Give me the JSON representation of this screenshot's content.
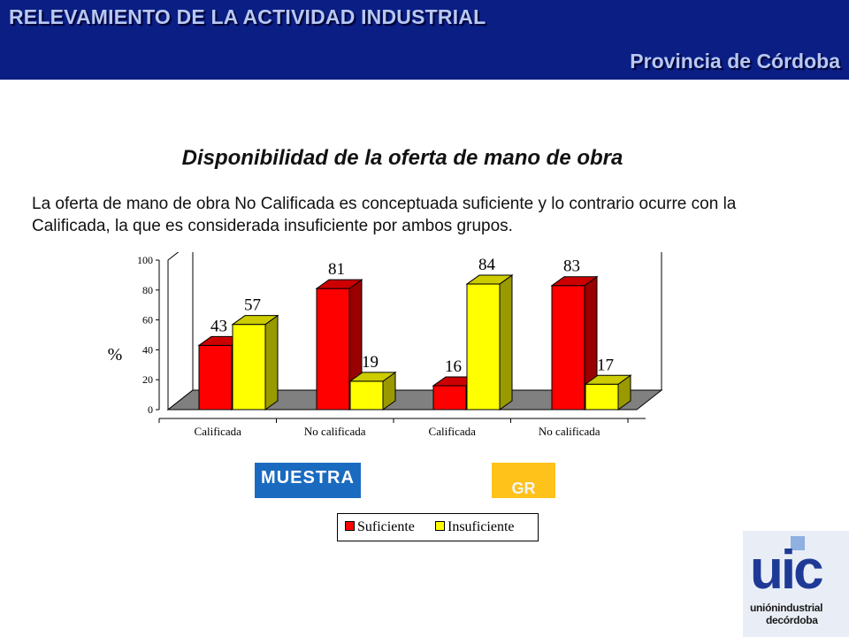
{
  "header": {
    "title": "RELEVAMIENTO DE LA ACTIVIDAD INDUSTRIAL",
    "subtitle": "Provincia de Córdoba"
  },
  "slide": {
    "heading": "Disponibilidad de la oferta de mano de obra",
    "description": "La oferta de mano de obra No Calificada es conceptuada suficiente y lo contrario ocurre con la Calificada, la que es considerada insuficiente por ambos grupos."
  },
  "groups": {
    "muestra": "MUESTRA",
    "gr": "GR"
  },
  "logo": {
    "mark": "uic",
    "line1": "uniónindustrial",
    "line2": "decórdoba"
  },
  "colors": {
    "suficiente": "#ff0000",
    "insuficiente": "#ffff00",
    "muestra_badge": "#1a6bc0",
    "gr_badge": "#ffc21a",
    "header": "#0a1e84"
  },
  "chart_data": {
    "type": "bar",
    "style": "3d-clustered",
    "categories": [
      "Calificada",
      "No calificada",
      "Calificada",
      "No calificada"
    ],
    "series": [
      {
        "name": "Suficiente",
        "values": [
          43,
          81,
          16,
          83
        ]
      },
      {
        "name": "Insuficiente",
        "values": [
          57,
          19,
          84,
          17
        ]
      }
    ],
    "data_labels": [
      [
        "43",
        "81",
        "16",
        "83"
      ],
      [
        "57",
        "19",
        "84",
        "17"
      ]
    ],
    "ylabel": "%",
    "ylim": [
      0,
      100
    ],
    "yticks": [
      "0",
      "20",
      "40",
      "60",
      "80",
      "100"
    ],
    "grid": false,
    "legend": "bottom"
  }
}
